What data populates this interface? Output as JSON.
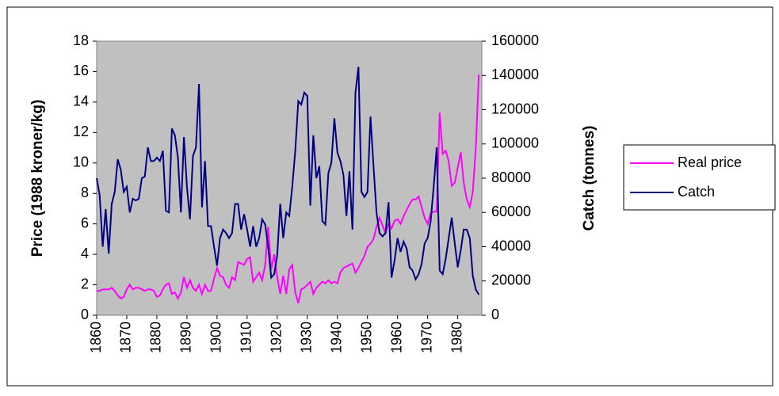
{
  "chart_data": {
    "type": "line",
    "y_label": "Price (1988 kroner/kg)",
    "y2_label": "Catch (tonnes)",
    "x": [
      1860,
      1861,
      1862,
      1863,
      1864,
      1865,
      1866,
      1867,
      1868,
      1869,
      1870,
      1871,
      1872,
      1873,
      1874,
      1875,
      1876,
      1877,
      1878,
      1879,
      1880,
      1881,
      1882,
      1883,
      1884,
      1885,
      1886,
      1887,
      1888,
      1889,
      1890,
      1891,
      1892,
      1893,
      1894,
      1895,
      1896,
      1897,
      1898,
      1899,
      1900,
      1901,
      1902,
      1903,
      1904,
      1905,
      1906,
      1907,
      1908,
      1909,
      1910,
      1911,
      1912,
      1913,
      1914,
      1915,
      1916,
      1917,
      1918,
      1919,
      1920,
      1921,
      1922,
      1923,
      1924,
      1925,
      1926,
      1927,
      1928,
      1929,
      1930,
      1931,
      1932,
      1933,
      1934,
      1935,
      1936,
      1937,
      1938,
      1939,
      1940,
      1941,
      1942,
      1943,
      1944,
      1945,
      1946,
      1947,
      1948,
      1949,
      1950,
      1951,
      1952,
      1953,
      1954,
      1955,
      1956,
      1957,
      1958,
      1959,
      1960,
      1961,
      1962,
      1963,
      1964,
      1965,
      1966,
      1967,
      1968,
      1969,
      1970,
      1971,
      1972,
      1973,
      1974,
      1975,
      1976,
      1977,
      1978,
      1979,
      1980,
      1981,
      1982,
      1983,
      1984,
      1985,
      1986,
      1987
    ],
    "series": [
      {
        "name": "Real price",
        "color": "#ff00ff",
        "axis": "y",
        "values": [
          1.6,
          1.6,
          1.7,
          1.7,
          1.7,
          1.8,
          1.6,
          1.3,
          1.1,
          1.2,
          1.7,
          2.0,
          1.7,
          1.8,
          1.8,
          1.7,
          1.6,
          1.7,
          1.7,
          1.6,
          1.2,
          1.3,
          1.7,
          2.0,
          2.1,
          1.4,
          1.5,
          1.1,
          1.5,
          2.5,
          1.8,
          2.3,
          1.8,
          1.6,
          2.0,
          1.4,
          2.0,
          1.6,
          1.6,
          2.4,
          3.1,
          2.6,
          2.5,
          2.0,
          1.8,
          2.5,
          2.3,
          3.5,
          3.4,
          3.3,
          3.7,
          3.8,
          2.2,
          2.5,
          2.8,
          2.3,
          3.3,
          5.8,
          3.0,
          4.0,
          2.5,
          1.4,
          2.6,
          1.4,
          3.0,
          3.3,
          1.5,
          0.8,
          1.7,
          1.8,
          2.0,
          2.2,
          1.4,
          1.8,
          2.0,
          2.2,
          2.1,
          2.3,
          2.1,
          2.2,
          2.1,
          2.8,
          3.1,
          3.2,
          3.3,
          3.4,
          2.8,
          3.1,
          3.5,
          3.9,
          4.5,
          4.7,
          5.0,
          5.8,
          6.4,
          5.9,
          5.4,
          6.0,
          5.7,
          6.2,
          6.3,
          6.0,
          6.5,
          6.9,
          7.3,
          7.6,
          7.6,
          7.8,
          7.1,
          6.4,
          6.0,
          6.7,
          6.8,
          6.8,
          13.3,
          10.6,
          10.8,
          10.1,
          8.5,
          8.7,
          9.7,
          10.7,
          8.7,
          7.6,
          7.1,
          8.1,
          11.0,
          15.8
        ]
      },
      {
        "name": "Catch",
        "color": "#000080",
        "axis": "y2",
        "values": [
          80000,
          70000,
          40000,
          62000,
          36000,
          65000,
          72000,
          91000,
          85000,
          72000,
          75000,
          60000,
          68000,
          67000,
          68000,
          80000,
          81000,
          98000,
          90000,
          90000,
          92000,
          90000,
          96000,
          61000,
          60000,
          109000,
          105000,
          92000,
          60000,
          104000,
          75000,
          56000,
          93000,
          98000,
          135000,
          63000,
          90000,
          52000,
          52000,
          40000,
          29000,
          45000,
          50000,
          48000,
          45000,
          48000,
          65000,
          65000,
          50000,
          59000,
          50000,
          40000,
          52000,
          40000,
          45000,
          56000,
          53000,
          40000,
          22000,
          24000,
          35000,
          65000,
          45000,
          60000,
          58000,
          75000,
          96000,
          125000,
          123000,
          130000,
          128000,
          64000,
          105000,
          80000,
          87000,
          55000,
          53000,
          83000,
          89000,
          115000,
          95000,
          90000,
          82000,
          58000,
          84000,
          50000,
          130000,
          145000,
          72000,
          69000,
          72000,
          116000,
          87000,
          60000,
          48000,
          46000,
          48000,
          66000,
          22000,
          32000,
          45000,
          37000,
          43000,
          39000,
          28000,
          26000,
          21000,
          24000,
          30000,
          42000,
          45000,
          55000,
          75000,
          98000,
          26000,
          24000,
          33000,
          45000,
          57000,
          42000,
          28000,
          38000,
          50000,
          50000,
          45000,
          23000,
          15000,
          12000
        ]
      }
    ],
    "xlim": [
      1860,
      1988
    ],
    "xticks": [
      1860,
      1870,
      1880,
      1890,
      1900,
      1910,
      1920,
      1930,
      1940,
      1950,
      1960,
      1970,
      1980
    ],
    "ylim": [
      0,
      18
    ],
    "yticks": [
      0,
      2,
      4,
      6,
      8,
      10,
      12,
      14,
      16,
      18
    ],
    "y2lim": [
      0,
      160000
    ],
    "y2ticks": [
      0,
      20000,
      40000,
      60000,
      80000,
      100000,
      120000,
      140000,
      160000
    ],
    "legend": "right"
  }
}
